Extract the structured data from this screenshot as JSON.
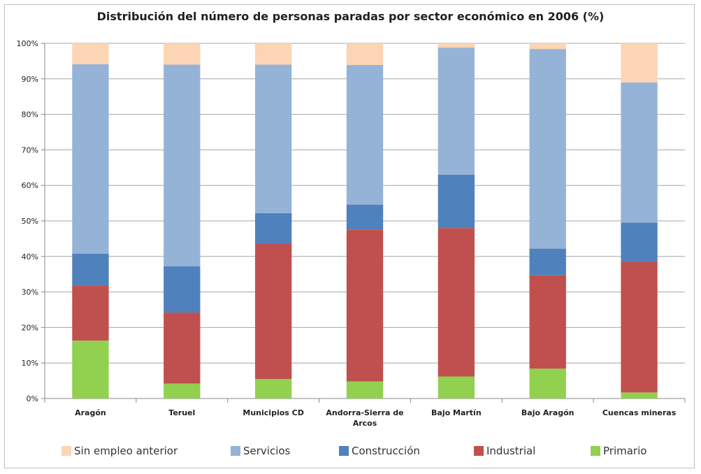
{
  "chart_data": {
    "type": "bar",
    "stacked": true,
    "title": "Distribución del número de personas paradas por sector económico en 2006 (%)",
    "xlabel": "",
    "ylabel": "",
    "ylim": [
      0,
      100
    ],
    "y_tick_labels": [
      "0%",
      "10%",
      "20%",
      "30%",
      "40%",
      "50%",
      "60%",
      "70%",
      "80%",
      "90%",
      "100%"
    ],
    "grid": true,
    "legend_position": "bottom",
    "categories": [
      "Aragón",
      "Teruel",
      "Municipios CD",
      "Andorra-Sierra de Arcos",
      "Bajo Martín",
      "Bajo Aragón",
      "Cuencas mineras"
    ],
    "series": [
      {
        "name": "Primario",
        "color": "#92d050",
        "values": [
          16.3,
          4.2,
          5.5,
          4.8,
          6.2,
          8.4,
          1.7
        ]
      },
      {
        "name": "Industrial",
        "color": "#c0504d",
        "values": [
          15.5,
          20.0,
          38.0,
          42.8,
          41.8,
          26.3,
          36.8
        ]
      },
      {
        "name": "Construcción",
        "color": "#4f81bd",
        "values": [
          9.0,
          13.0,
          8.7,
          7.0,
          15.0,
          7.5,
          11.0
        ]
      },
      {
        "name": "Servicios",
        "color": "#95b3d7",
        "values": [
          53.3,
          56.8,
          41.8,
          39.3,
          35.8,
          56.2,
          39.5
        ]
      },
      {
        "name": "Sin empleo anterior",
        "color": "#fcd5b4",
        "values": [
          5.9,
          6.0,
          6.0,
          6.1,
          1.2,
          1.6,
          11.0
        ]
      }
    ],
    "legend_order": [
      "Sin empleo anterior",
      "Servicios",
      "Construcción",
      "Industrial",
      "Primario"
    ]
  }
}
